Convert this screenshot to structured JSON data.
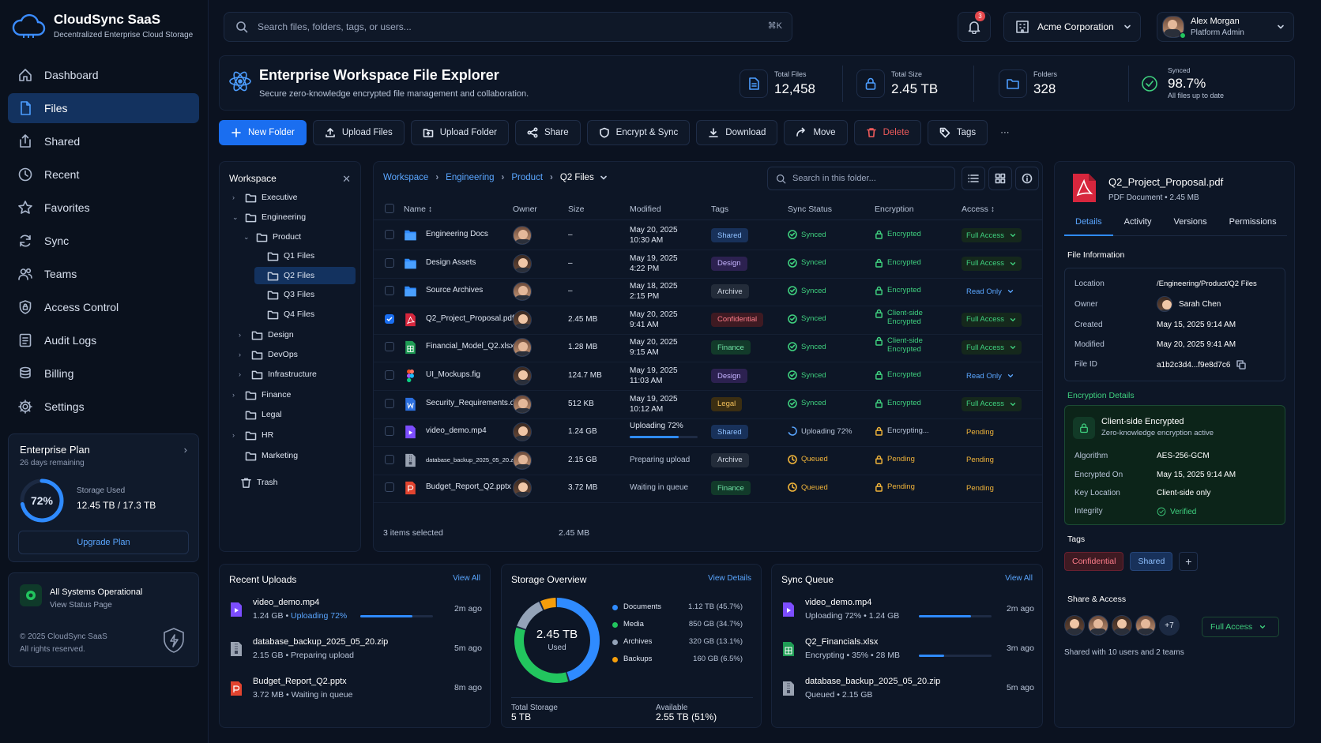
{
  "app": {
    "name": "CloudSync SaaS",
    "tagline": "Decentralized Enterprise Cloud Storage"
  },
  "nav": [
    {
      "label": "Dashboard",
      "icon": "home-icon"
    },
    {
      "label": "Files",
      "icon": "file-icon",
      "active": true
    },
    {
      "label": "Shared",
      "icon": "share-icon"
    },
    {
      "label": "Recent",
      "icon": "clock-icon"
    },
    {
      "label": "Favorites",
      "icon": "star-icon"
    },
    {
      "label": "Sync",
      "icon": "sync-icon"
    },
    {
      "label": "Teams",
      "icon": "users-icon"
    },
    {
      "label": "Access Control",
      "icon": "shield-icon"
    },
    {
      "label": "Audit Logs",
      "icon": "list-icon"
    },
    {
      "label": "Billing",
      "icon": "coins-icon"
    },
    {
      "label": "Settings",
      "icon": "gear-icon"
    }
  ],
  "plan": {
    "title": "Enterprise Plan",
    "remaining": "26 days remaining",
    "percent_label": "72%",
    "percent": 0.72,
    "storage_label": "Storage Used",
    "storage_value": "12.45 TB / 17.3 TB",
    "upgrade": "Upgrade Plan"
  },
  "system": {
    "status": "All Systems Operational",
    "link": "View Status Page",
    "copyright": "© 2025 CloudSync SaaS",
    "rights": "All rights reserved."
  },
  "search": {
    "placeholder": "Search files, folders, tags, or users...",
    "shortcut": "⌘K"
  },
  "notifications": {
    "count": "3"
  },
  "org": {
    "name": "Acme Corporation"
  },
  "user": {
    "name": "Alex Morgan",
    "role": "Platform Admin"
  },
  "header": {
    "title": "Enterprise Workspace File Explorer",
    "subtitle": "Secure zero-knowledge encrypted file management and collaboration.",
    "stats": [
      {
        "label": "Total Files",
        "value": "12,458"
      },
      {
        "label": "Total Size",
        "value": "2.45 TB"
      },
      {
        "label": "Folders",
        "value": "328"
      }
    ],
    "synced": {
      "label": "Synced",
      "value": "98.7%",
      "note": "All files up to date"
    }
  },
  "toolbar": {
    "new_folder": "New Folder",
    "upload_files": "Upload Files",
    "upload_folder": "Upload Folder",
    "share": "Share",
    "encrypt_sync": "Encrypt & Sync",
    "download": "Download",
    "move": "Move",
    "delete": "Delete",
    "tags": "Tags",
    "more": "···"
  },
  "tree": {
    "title": "Workspace",
    "nodes": [
      {
        "label": "Executive"
      },
      {
        "label": "Engineering"
      },
      {
        "label": "Product"
      },
      {
        "label": "Q1 Files"
      },
      {
        "label": "Q2 Files"
      },
      {
        "label": "Q3 Files"
      },
      {
        "label": "Q4 Files"
      },
      {
        "label": "Design"
      },
      {
        "label": "DevOps"
      },
      {
        "label": "Infrastructure"
      },
      {
        "label": "Finance"
      },
      {
        "label": "Legal"
      },
      {
        "label": "HR"
      },
      {
        "label": "Marketing"
      },
      {
        "label": "Trash"
      }
    ]
  },
  "breadcrumb": [
    "Workspace",
    "Engineering",
    "Product",
    "Q2 Files"
  ],
  "folder_search": {
    "placeholder": "Search in this folder..."
  },
  "table": {
    "columns": [
      "Name",
      "Owner",
      "Size",
      "Modified",
      "Tags",
      "Sync Status",
      "Encryption",
      "Access"
    ],
    "rows": [
      {
        "name": "Engineering Docs",
        "type": "folder",
        "size": "–",
        "modified": [
          "May 20, 2025",
          "10:30 AM"
        ],
        "tag": "Shared",
        "sync": "Synced",
        "sync_state": "ok",
        "enc": [
          "Encrypted"
        ],
        "enc_state": "ok",
        "access": "Full Access",
        "access_state": "full"
      },
      {
        "name": "Design Assets",
        "type": "folder",
        "size": "–",
        "modified": [
          "May 19, 2025",
          "4:22 PM"
        ],
        "tag": "Design",
        "sync": "Synced",
        "sync_state": "ok",
        "enc": [
          "Encrypted"
        ],
        "enc_state": "ok",
        "access": "Full Access",
        "access_state": "full"
      },
      {
        "name": "Source Archives",
        "type": "folder",
        "size": "–",
        "modified": [
          "May 18, 2025",
          "2:15 PM"
        ],
        "tag": "Archive",
        "sync": "Synced",
        "sync_state": "ok",
        "enc": [
          "Encrypted"
        ],
        "enc_state": "ok",
        "access": "Read Only",
        "access_state": "ro"
      },
      {
        "name": "Q2_Project_Proposal.pdf",
        "type": "pdf",
        "size": "2.45 MB",
        "modified": [
          "May 20, 2025",
          "9:41 AM"
        ],
        "tag": "Confidential",
        "sync": "Synced",
        "sync_state": "ok",
        "enc": [
          "Client-side",
          "Encrypted"
        ],
        "enc_state": "ok",
        "access": "Full Access",
        "access_state": "full",
        "checked": true
      },
      {
        "name": "Financial_Model_Q2.xlsx",
        "type": "xlsx",
        "size": "1.28 MB",
        "modified": [
          "May 20, 2025",
          "9:15 AM"
        ],
        "tag": "Finance",
        "sync": "Synced",
        "sync_state": "ok",
        "enc": [
          "Client-side",
          "Encrypted"
        ],
        "enc_state": "ok",
        "access": "Full Access",
        "access_state": "full"
      },
      {
        "name": "UI_Mockups.fig",
        "type": "fig",
        "size": "124.7 MB",
        "modified": [
          "May 19, 2025",
          "11:03 AM"
        ],
        "tag": "Design",
        "sync": "Synced",
        "sync_state": "ok",
        "enc": [
          "Encrypted"
        ],
        "enc_state": "ok",
        "access": "Read Only",
        "access_state": "ro"
      },
      {
        "name": "Security_Requirements.docx",
        "type": "docx",
        "size": "512 KB",
        "modified": [
          "May 19, 2025",
          "10:12 AM"
        ],
        "tag": "Legal",
        "sync": "Synced",
        "sync_state": "ok",
        "enc": [
          "Encrypted"
        ],
        "enc_state": "ok",
        "access": "Full Access",
        "access_state": "full"
      },
      {
        "name": "video_demo.mp4",
        "type": "mp4",
        "size": "1.24 GB",
        "modified": [
          "Uploading 72%"
        ],
        "progress": 0.72,
        "tag": "Shared",
        "sync": "Uploading 72%",
        "sync_state": "up",
        "enc": [
          "Encrypting..."
        ],
        "enc_state": "pend",
        "access": "Pending",
        "access_state": "pend"
      },
      {
        "name": "database_backup_2025_05_20.zip",
        "type": "zip",
        "size": "2.15 GB",
        "modified": [
          "Preparing upload"
        ],
        "tag": "Archive",
        "sync": "Queued",
        "sync_state": "q",
        "enc": [
          "Pending"
        ],
        "enc_state": "pend",
        "access": "Pending",
        "access_state": "pend"
      },
      {
        "name": "Budget_Report_Q2.pptx",
        "type": "pptx",
        "size": "3.72 MB",
        "modified": [
          "Waiting in queue"
        ],
        "tag": "Finance",
        "sync": "Queued",
        "sync_state": "q",
        "enc": [
          "Pending"
        ],
        "enc_state": "pend",
        "access": "Pending",
        "access_state": "pend"
      }
    ],
    "footer": {
      "selected": "3 items selected",
      "size": "2.45 MB"
    }
  },
  "details": {
    "file_name": "Q2_Project_Proposal.pdf",
    "file_type": "PDF Document",
    "file_size": "2.45 MB",
    "tabs": [
      "Details",
      "Activity",
      "Versions",
      "Permissions"
    ],
    "info_title": "File Information",
    "info": [
      {
        "k": "Location",
        "v": "/Engineering/Product/Q2 Files"
      },
      {
        "k": "Owner",
        "v": "Sarah Chen"
      },
      {
        "k": "Created",
        "v": "May 15, 2025 9:14 AM"
      },
      {
        "k": "Modified",
        "v": "May 20, 2025 9:41 AM"
      },
      {
        "k": "File ID",
        "v": "a1b2c3d4...f9e8d7c6"
      }
    ],
    "enc_title": "Encryption Details",
    "enc_head": "Client-side Encrypted",
    "enc_sub": "Zero-knowledge encryption active",
    "enc": [
      {
        "k": "Algorithm",
        "v": "AES-256-GCM"
      },
      {
        "k": "Encrypted On",
        "v": "May 15, 2025 9:14 AM"
      },
      {
        "k": "Key Location",
        "v": "Client-side only"
      },
      {
        "k": "Integrity",
        "v": "Verified"
      }
    ],
    "tags_title": "Tags",
    "tags": [
      "Confidential",
      "Shared"
    ],
    "share_title": "Share & Access",
    "share_more": "+7",
    "share_access": "Full Access",
    "share_note": "Shared with 10 users and 2 teams"
  },
  "recent_uploads": {
    "title": "Recent Uploads",
    "view_all": "View All",
    "items": [
      {
        "name": "video_demo.mp4",
        "size": "1.24 GB",
        "status": "Uploading 72%",
        "progress": 0.72,
        "time": "2m ago",
        "type": "mp4"
      },
      {
        "name": "database_backup_2025_05_20.zip",
        "size": "2.15 GB",
        "status": "Preparing upload",
        "time": "5m ago",
        "type": "zip"
      },
      {
        "name": "Budget_Report_Q2.pptx",
        "size": "3.72 MB",
        "status": "Waiting in queue",
        "time": "8m ago",
        "type": "pptx"
      }
    ]
  },
  "storage": {
    "title": "Storage Overview",
    "view_details": "View Details",
    "center_value": "2.45 TB",
    "center_label": "Used",
    "items": [
      {
        "name": "Documents",
        "value": "1.12 TB (45.7%)",
        "percent": 45.7,
        "color": "#2f8bff"
      },
      {
        "name": "Media",
        "value": "850 GB (34.7%)",
        "percent": 34.7,
        "color": "#22c55e"
      },
      {
        "name": "Archives",
        "value": "320 GB (13.1%)",
        "percent": 13.1,
        "color": "#94a3b8"
      },
      {
        "name": "Backups",
        "value": "160 GB (6.5%)",
        "percent": 6.5,
        "color": "#f59e0b"
      }
    ],
    "total_label": "Total Storage",
    "total_value": "5 TB",
    "available_label": "Available",
    "available_value": "2.55 TB (51%)"
  },
  "sync_queue": {
    "title": "Sync Queue",
    "view_all": "View All",
    "items": [
      {
        "name": "video_demo.mp4",
        "meta": "Uploading 72%  •  1.24 GB",
        "progress": 0.72,
        "time": "2m ago",
        "type": "mp4"
      },
      {
        "name": "Q2_Financials.xlsx",
        "meta": "Encrypting  •  35%  •  28 MB",
        "progress": 0.35,
        "time": "3m ago",
        "type": "xlsx"
      },
      {
        "name": "database_backup_2025_05_20.zip",
        "meta": "Queued  •  2.15 GB",
        "time": "5m ago",
        "type": "zip"
      }
    ]
  },
  "colors": {
    "accent": "#1a6ef0",
    "bg": "#0b1220",
    "success": "#3fd17f",
    "warning": "#f0b43a",
    "danger": "#ef5b5b"
  }
}
